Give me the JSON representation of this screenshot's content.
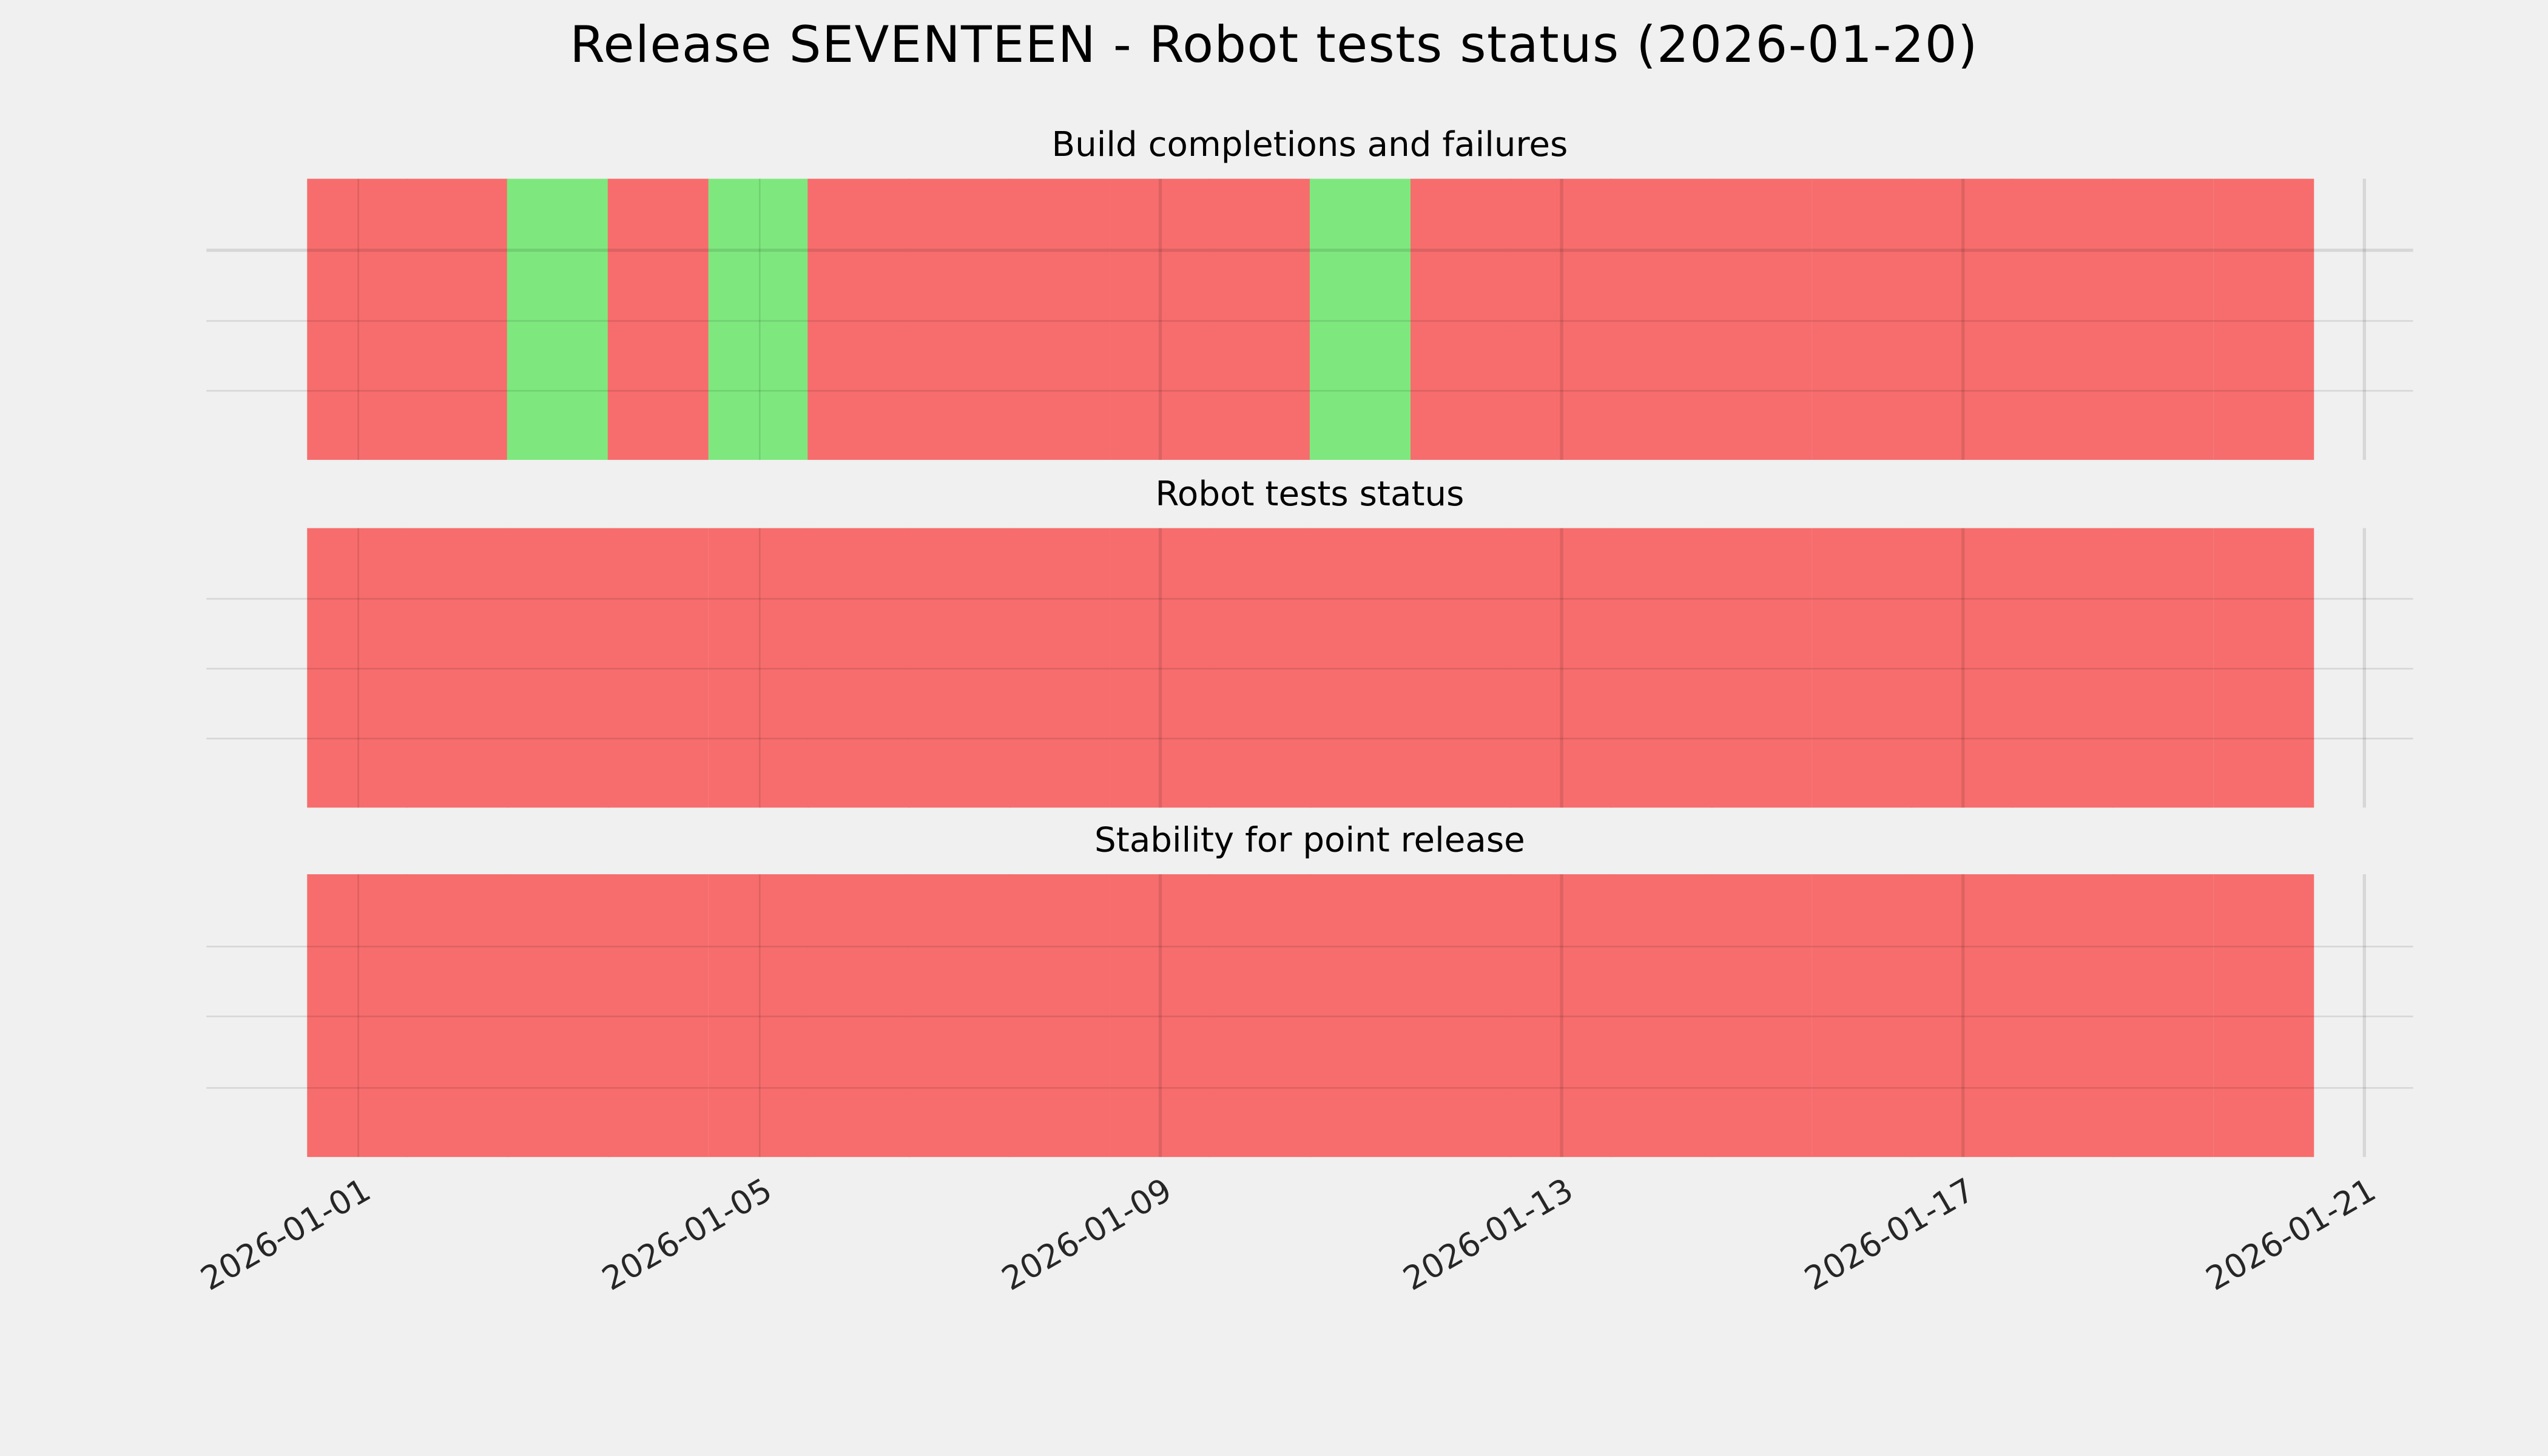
{
  "chart_data": {
    "type": "heatmap",
    "title": "Release SEVENTEEN - Robot tests status (2026-01-20)",
    "x": [
      "2026-01-01",
      "2026-01-02",
      "2026-01-03",
      "2026-01-04",
      "2026-01-05",
      "2026-01-06",
      "2026-01-07",
      "2026-01-08",
      "2026-01-09",
      "2026-01-10",
      "2026-01-11",
      "2026-01-12",
      "2026-01-13",
      "2026-01-14",
      "2026-01-15",
      "2026-01-16",
      "2026-01-17",
      "2026-01-18",
      "2026-01-19",
      "2026-01-20"
    ],
    "x_tick_labels": [
      "2026-01-01",
      "2026-01-05",
      "2026-01-09",
      "2026-01-13",
      "2026-01-17",
      "2026-01-21"
    ],
    "series": [
      {
        "name": "Build completions and failures",
        "values": [
          "fail",
          "fail",
          "pass",
          "fail",
          "pass",
          "fail",
          "fail",
          "fail",
          "fail",
          "fail",
          "pass",
          "fail",
          "fail",
          "fail",
          "fail",
          "fail",
          "fail",
          "fail",
          "fail",
          "fail"
        ]
      },
      {
        "name": "Robot tests status",
        "values": [
          "fail",
          "fail",
          "fail",
          "fail",
          "fail",
          "fail",
          "fail",
          "fail",
          "fail",
          "fail",
          "fail",
          "fail",
          "fail",
          "fail",
          "fail",
          "fail",
          "fail",
          "fail",
          "fail",
          "fail"
        ]
      },
      {
        "name": "Stability for point release",
        "values": [
          "fail",
          "fail",
          "fail",
          "fail",
          "fail",
          "fail",
          "fail",
          "fail",
          "fail",
          "fail",
          "fail",
          "fail",
          "fail",
          "fail",
          "fail",
          "fail",
          "fail",
          "fail",
          "fail",
          "fail"
        ]
      }
    ],
    "colors": {
      "pass": "#7ee87e",
      "fail": "#f76d6d"
    },
    "background": "#f0f0f0",
    "grid": true,
    "legend": "none"
  }
}
